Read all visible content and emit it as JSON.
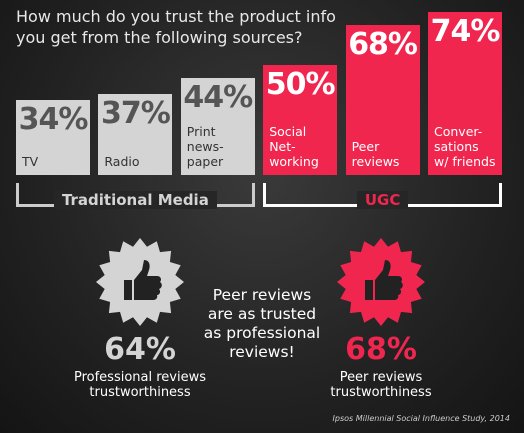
{
  "chart_data": {
    "type": "bar",
    "title": "How much do you trust the product info\nyou get from the following sources?",
    "categories": [
      "TV",
      "Radio",
      "Print\nnews-\npaper",
      "Social\nNet-\nworking",
      "Peer\nreviews",
      "Conver-\nsations\nw/ friends"
    ],
    "values": [
      34,
      37,
      44,
      50,
      68,
      74
    ],
    "value_labels": [
      "34%",
      "37%",
      "44%",
      "50%",
      "68%",
      "74%"
    ],
    "colors": [
      "#d4d4d4",
      "#d4d4d4",
      "#d4d4d4",
      "#f0264f",
      "#f0264f",
      "#f0264f"
    ],
    "groups": [
      {
        "label": "Traditional Media",
        "color": "#d4d4d4"
      },
      {
        "label": "UGC",
        "color": "#f0264f"
      }
    ]
  },
  "callouts": {
    "left": {
      "value": 64,
      "value_label": "64%",
      "label": "Professional reviews\ntrustworthiness",
      "color": "#d4d4d4"
    },
    "middle": "Peer reviews\nare as trusted\nas professional\nreviews!",
    "right": {
      "value": 68,
      "value_label": "68%",
      "label": "Peer reviews\ntrustworthiness",
      "color": "#f0264f"
    }
  },
  "source": "Ipsos Millennial Social Influence Study, 2014"
}
